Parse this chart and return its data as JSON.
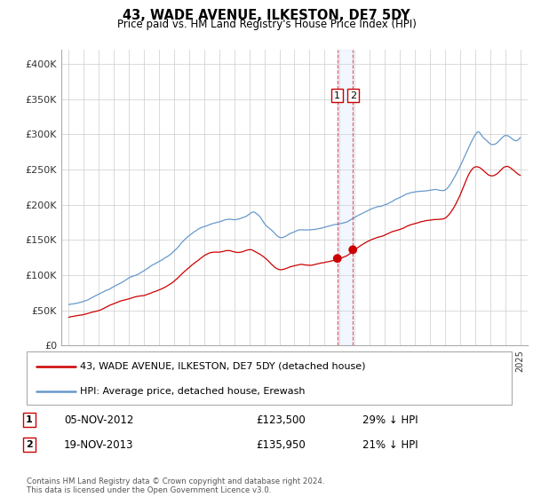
{
  "title": "43, WADE AVENUE, ILKESTON, DE7 5DY",
  "subtitle": "Price paid vs. HM Land Registry's House Price Index (HPI)",
  "legend_label_red": "43, WADE AVENUE, ILKESTON, DE7 5DY (detached house)",
  "legend_label_blue": "HPI: Average price, detached house, Erewash",
  "annotation1": {
    "label": "1",
    "date": "05-NOV-2012",
    "price": "£123,500",
    "pct": "29% ↓ HPI"
  },
  "annotation2": {
    "label": "2",
    "date": "19-NOV-2013",
    "price": "£135,950",
    "pct": "21% ↓ HPI"
  },
  "footer": "Contains HM Land Registry data © Crown copyright and database right 2024.\nThis data is licensed under the Open Government Licence v3.0.",
  "ylim": [
    0,
    420000
  ],
  "yticks": [
    0,
    50000,
    100000,
    150000,
    200000,
    250000,
    300000,
    350000,
    400000
  ],
  "ytick_labels": [
    "£0",
    "£50K",
    "£100K",
    "£150K",
    "£200K",
    "£250K",
    "£300K",
    "£350K",
    "£400K"
  ],
  "red_color": "#cc0000",
  "blue_color": "#6699cc",
  "vline_color": "#dd4444",
  "span_color": "#ddccee",
  "vline_x1": 2012.85,
  "vline_x2": 2013.88,
  "sale1_x": 2012.85,
  "sale1_y": 123500,
  "sale2_x": 2013.88,
  "sale2_y": 135950,
  "xmin": 1994.5,
  "xmax": 2025.5,
  "hpi_base_x": [
    1995.0,
    1995.5,
    1996.0,
    1996.5,
    1997.0,
    1997.5,
    1998.0,
    1998.5,
    1999.0,
    1999.5,
    2000.0,
    2000.5,
    2001.0,
    2001.5,
    2002.0,
    2002.5,
    2003.0,
    2003.5,
    2004.0,
    2004.5,
    2005.0,
    2005.5,
    2006.0,
    2006.5,
    2007.0,
    2007.25,
    2007.5,
    2007.75,
    2008.0,
    2008.5,
    2009.0,
    2009.5,
    2010.0,
    2010.5,
    2011.0,
    2011.5,
    2012.0,
    2012.5,
    2013.0,
    2013.5,
    2014.0,
    2014.5,
    2015.0,
    2015.5,
    2016.0,
    2016.5,
    2017.0,
    2017.5,
    2018.0,
    2018.5,
    2019.0,
    2019.5,
    2020.0,
    2020.5,
    2021.0,
    2021.5,
    2022.0,
    2022.25,
    2022.5,
    2022.75,
    2023.0,
    2023.5,
    2024.0,
    2024.5,
    2025.0
  ],
  "hpi_base_y": [
    58000,
    60000,
    63000,
    67000,
    72000,
    78000,
    84000,
    90000,
    96000,
    100000,
    105000,
    112000,
    118000,
    125000,
    133000,
    145000,
    155000,
    163000,
    168000,
    172000,
    175000,
    178000,
    178000,
    180000,
    185000,
    188000,
    185000,
    180000,
    172000,
    162000,
    152000,
    155000,
    160000,
    163000,
    163000,
    165000,
    167000,
    170000,
    172000,
    175000,
    182000,
    188000,
    193000,
    197000,
    200000,
    205000,
    210000,
    215000,
    218000,
    220000,
    222000,
    223000,
    222000,
    235000,
    255000,
    278000,
    300000,
    305000,
    298000,
    293000,
    288000,
    290000,
    300000,
    295000,
    298000
  ],
  "pp_base_x": [
    1995.0,
    1995.5,
    1996.0,
    1996.5,
    1997.0,
    1997.5,
    1998.0,
    1998.5,
    1999.0,
    1999.5,
    2000.0,
    2000.5,
    2001.0,
    2001.5,
    2002.0,
    2002.5,
    2003.0,
    2003.5,
    2004.0,
    2004.5,
    2005.0,
    2005.5,
    2006.0,
    2006.5,
    2007.0,
    2007.5,
    2008.0,
    2008.5,
    2009.0,
    2009.5,
    2010.0,
    2010.5,
    2011.0,
    2011.5,
    2012.0,
    2012.5,
    2013.0,
    2013.5,
    2014.0,
    2014.5,
    2015.0,
    2015.5,
    2016.0,
    2016.5,
    2017.0,
    2017.5,
    2018.0,
    2018.5,
    2019.0,
    2019.5,
    2020.0,
    2020.5,
    2021.0,
    2021.5,
    2022.0,
    2022.5,
    2023.0,
    2023.5,
    2024.0,
    2024.5,
    2025.0
  ],
  "pp_base_y": [
    40000,
    42000,
    44000,
    47000,
    50000,
    55000,
    60000,
    64000,
    67000,
    70000,
    72000,
    76000,
    80000,
    85000,
    92000,
    102000,
    112000,
    120000,
    128000,
    132000,
    133000,
    135000,
    133000,
    133000,
    136000,
    132000,
    125000,
    115000,
    108000,
    110000,
    113000,
    115000,
    114000,
    116000,
    118000,
    120000,
    123000,
    127000,
    135000,
    142000,
    148000,
    152000,
    155000,
    160000,
    163000,
    168000,
    172000,
    175000,
    177000,
    178000,
    180000,
    192000,
    212000,
    238000,
    252000,
    248000,
    240000,
    243000,
    252000,
    248000,
    240000
  ]
}
